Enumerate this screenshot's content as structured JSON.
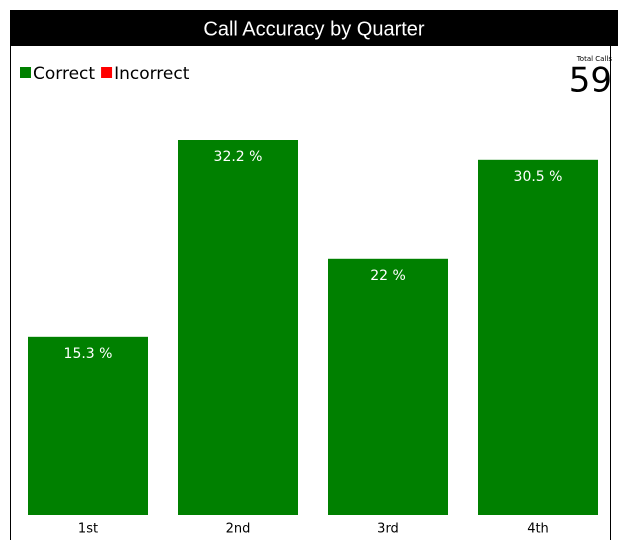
{
  "chart_data": {
    "type": "bar",
    "title": "Call Accuracy by Quarter",
    "categories": [
      "1st",
      "2nd",
      "3rd",
      "4th"
    ],
    "series": [
      {
        "name": "Correct",
        "color": "#008000",
        "values": [
          15.3,
          32.2,
          22,
          30.5
        ],
        "value_labels": [
          "15.3 %",
          "32.2 %",
          "22 %",
          "30.5 %"
        ]
      },
      {
        "name": "Incorrect",
        "color": "#ff0000",
        "values": [
          0,
          0,
          0,
          0
        ]
      }
    ],
    "total_label": "Total Calls",
    "total_value": 59
  }
}
